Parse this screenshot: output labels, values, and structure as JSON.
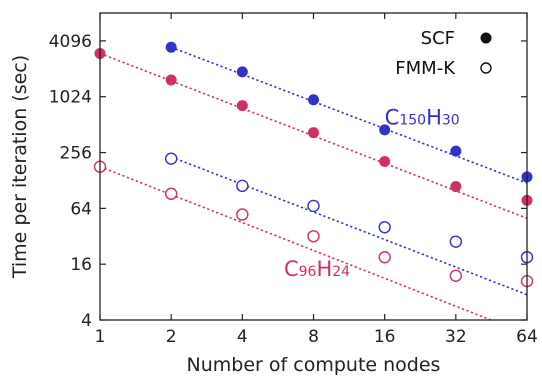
{
  "chart_data": {
    "type": "scatter",
    "title": "",
    "xlabel": "Number of compute nodes",
    "ylabel": "Time per iteration (sec)",
    "x_scale": "log2",
    "y_scale": "log2",
    "xlim": [
      1,
      64
    ],
    "ylim": [
      4,
      8192
    ],
    "x_ticks": [
      1,
      2,
      4,
      8,
      16,
      32,
      64
    ],
    "y_ticks": [
      4,
      16,
      64,
      256,
      1024,
      4096
    ],
    "grid": false,
    "legend": {
      "placement": "top-right",
      "entries": [
        {
          "label": "SCF",
          "marker": "filled-circle"
        },
        {
          "label": "FMM-K",
          "marker": "open-circle"
        }
      ]
    },
    "colors": {
      "C150H30": "#3232c8",
      "C96H24": "#d0306a",
      "axis": "#222222"
    },
    "annotations": [
      {
        "base": "C",
        "sub1": "150",
        "mid": "H",
        "sub2": "30",
        "color": "#3232c8",
        "x": 16,
        "y": 512
      },
      {
        "base": "C",
        "sub1": "96",
        "mid": "H",
        "sub2": "24",
        "color": "#d0306a",
        "x": 6,
        "y": 12
      }
    ],
    "series": [
      {
        "molecule": "C150H30",
        "method": "SCF",
        "color": "#3232c8",
        "marker": "filled",
        "x": [
          2,
          4,
          8,
          16,
          32,
          64
        ],
        "y": [
          3500,
          1900,
          950,
          450,
          265,
          140
        ],
        "fit": {
          "x": [
            2,
            64
          ],
          "y": [
            3500,
            120
          ]
        }
      },
      {
        "molecule": "C96H24",
        "method": "SCF",
        "color": "#d0306a",
        "marker": "filled",
        "x": [
          1,
          2,
          4,
          8,
          16,
          32,
          64
        ],
        "y": [
          3000,
          1550,
          820,
          420,
          205,
          110,
          78
        ],
        "fit": {
          "x": [
            1,
            64
          ],
          "y": [
            3000,
            50
          ]
        }
      },
      {
        "molecule": "C150H30",
        "method": "FMM-K",
        "color": "#3232c8",
        "marker": "open",
        "x": [
          2,
          4,
          8,
          16,
          32,
          64
        ],
        "y": [
          220,
          112,
          68,
          40,
          28,
          19
        ],
        "fit": {
          "x": [
            2,
            64
          ],
          "y": [
            230,
            7.5
          ]
        }
      },
      {
        "molecule": "C96H24",
        "method": "FMM-K",
        "color": "#d0306a",
        "marker": "open",
        "x": [
          1,
          2,
          4,
          8,
          16,
          32,
          64
        ],
        "y": [
          180,
          92,
          55,
          32,
          19,
          12,
          10.5
        ],
        "fit": {
          "x": [
            1,
            45
          ],
          "y": [
            180,
            4
          ]
        }
      }
    ]
  }
}
